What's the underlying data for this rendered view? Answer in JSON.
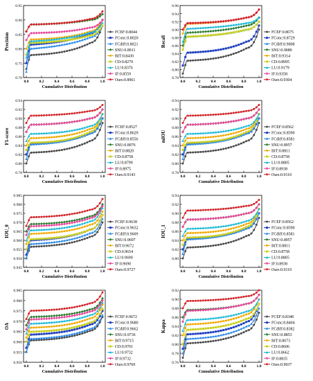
{
  "chart_data": [
    {
      "type": "line",
      "xlabel": "Cumulative Distribution",
      "ylabel": "Precision",
      "xlim": [
        0,
        1
      ],
      "ylim": [
        0.7,
        0.95
      ],
      "yticks": [
        "0.70",
        "0.75",
        "0.80",
        "0.85",
        "0.90",
        "0.95"
      ],
      "xticks": [
        "0.0",
        "0.2",
        "0.4",
        "0.6",
        "0.8",
        "1.0"
      ],
      "legend": [
        "FCEF:0.8044",
        "FConc:0.8020",
        "FCdiff:0.8021",
        "SNU:0.8911",
        "BIT:0.8430",
        "CD:0.8279",
        "LU:0.8376",
        "IF:0.8559",
        "Ours:0.8961"
      ],
      "series": [
        {
          "start": 0.73,
          "mid": 0.79,
          "end": 0.88
        },
        {
          "start": 0.75,
          "mid": 0.83,
          "end": 0.9
        },
        {
          "start": 0.72,
          "mid": 0.82,
          "end": 0.88
        },
        {
          "start": 0.86,
          "mid": 0.89,
          "end": 0.92
        },
        {
          "start": 0.8,
          "mid": 0.84,
          "end": 0.9
        },
        {
          "start": 0.78,
          "mid": 0.83,
          "end": 0.88
        },
        {
          "start": 0.77,
          "mid": 0.84,
          "end": 0.89
        },
        {
          "start": 0.83,
          "mid": 0.86,
          "end": 0.9
        },
        {
          "start": 0.86,
          "mid": 0.89,
          "end": 0.93
        }
      ]
    },
    {
      "type": "line",
      "xlabel": "Cumulative Distribution",
      "ylabel": "Recall",
      "xlim": [
        0,
        1
      ],
      "ylim": [
        0.78,
        0.96
      ],
      "yticks": [
        "0.78",
        "0.80",
        "0.82",
        "0.84",
        "0.86",
        "0.88",
        "0.90",
        "0.92",
        "0.94",
        "0.96"
      ],
      "xticks": [
        "0.0",
        "0.2",
        "0.4",
        "0.6",
        "0.8",
        "1.0"
      ],
      "legend": [
        "FCEF:0.8675",
        "FConc:0.8729",
        "FCdiff:0.9008",
        "SNU:0.9089",
        "BIT:0.9314",
        "CD:0.8995",
        "LU:0.9179",
        "IF:0.9358",
        "Ours:0.9304"
      ],
      "series": [
        {
          "start": 0.79,
          "mid": 0.83,
          "end": 0.9
        },
        {
          "start": 0.81,
          "mid": 0.85,
          "end": 0.91
        },
        {
          "start": 0.85,
          "mid": 0.89,
          "end": 0.92
        },
        {
          "start": 0.86,
          "mid": 0.9,
          "end": 0.93
        },
        {
          "start": 0.89,
          "mid": 0.92,
          "end": 0.95
        },
        {
          "start": 0.85,
          "mid": 0.89,
          "end": 0.92
        },
        {
          "start": 0.87,
          "mid": 0.91,
          "end": 0.93
        },
        {
          "start": 0.9,
          "mid": 0.92,
          "end": 0.95
        },
        {
          "start": 0.9,
          "mid": 0.92,
          "end": 0.95
        }
      ]
    },
    {
      "type": "line",
      "xlabel": "Cumulative Distribution",
      "ylabel": "F1-score",
      "xlim": [
        0,
        1
      ],
      "ylim": [
        0.78,
        0.94
      ],
      "yticks": [
        "0.78",
        "0.80",
        "0.82",
        "0.84",
        "0.86",
        "0.88",
        "0.90",
        "0.92",
        "0.94"
      ],
      "xticks": [
        "0.0",
        "0.2",
        "0.4",
        "0.6",
        "0.8",
        "1.0"
      ],
      "legend": [
        "FCEF:0.8527",
        "FConc:0.8629",
        "FCdiff:0.8556",
        "SNU:0.8976",
        "BIT:0.8820",
        "CD:0.8758",
        "LU:0.8799",
        "IF:0.8975",
        "Ours:0.9143"
      ],
      "series": [
        {
          "start": 0.8,
          "mid": 0.83,
          "end": 0.89
        },
        {
          "start": 0.82,
          "mid": 0.85,
          "end": 0.9
        },
        {
          "start": 0.81,
          "mid": 0.85,
          "end": 0.9
        },
        {
          "start": 0.87,
          "mid": 0.89,
          "end": 0.92
        },
        {
          "start": 0.84,
          "mid": 0.86,
          "end": 0.91
        },
        {
          "start": 0.83,
          "mid": 0.85,
          "end": 0.91
        },
        {
          "start": 0.85,
          "mid": 0.87,
          "end": 0.91
        },
        {
          "start": 0.87,
          "mid": 0.89,
          "end": 0.92
        },
        {
          "start": 0.89,
          "mid": 0.91,
          "end": 0.93
        }
      ]
    },
    {
      "type": "line",
      "xlabel": "Cumulative Distribution",
      "ylabel": "mIOU",
      "xlim": [
        0,
        1
      ],
      "ylim": [
        0.78,
        0.94
      ],
      "yticks": [
        "0.78",
        "0.80",
        "0.82",
        "0.84",
        "0.86",
        "0.88",
        "0.90",
        "0.92",
        "0.94"
      ],
      "xticks": [
        "0.0",
        "0.2",
        "0.4",
        "0.6",
        "0.8",
        "1.0"
      ],
      "legend": [
        "FCEF:0.8562",
        "FConc:0.8590",
        "FCdiff:0.8581",
        "SNU:0.8957",
        "BIT:0.8811",
        "CD:0.8758",
        "LU:0.8805",
        "IF:0.8938",
        "Ours:0.9110"
      ],
      "series": [
        {
          "start": 0.8,
          "mid": 0.83,
          "end": 0.89
        },
        {
          "start": 0.82,
          "mid": 0.85,
          "end": 0.9
        },
        {
          "start": 0.81,
          "mid": 0.85,
          "end": 0.9
        },
        {
          "start": 0.87,
          "mid": 0.89,
          "end": 0.92
        },
        {
          "start": 0.84,
          "mid": 0.86,
          "end": 0.91
        },
        {
          "start": 0.83,
          "mid": 0.85,
          "end": 0.91
        },
        {
          "start": 0.85,
          "mid": 0.87,
          "end": 0.91
        },
        {
          "start": 0.87,
          "mid": 0.89,
          "end": 0.92
        },
        {
          "start": 0.89,
          "mid": 0.91,
          "end": 0.93
        }
      ]
    },
    {
      "type": "line",
      "xlabel": "Cumulative Distribution",
      "ylabel": "IOU_0",
      "xlim": [
        0,
        1
      ],
      "ylim": [
        0.945,
        0.985
      ],
      "yticks": [
        "0.945",
        "0.950",
        "0.955",
        "0.960",
        "0.965",
        "0.970",
        "0.975",
        "0.980",
        "0.985"
      ],
      "xticks": [
        "0.0",
        "0.2",
        "0.4",
        "0.6",
        "0.8",
        "1.0"
      ],
      "legend": [
        "FCEF:0.9638",
        "FConc:0.9632",
        "FCdiff:0.9609",
        "SNU:0.9697",
        "BIT:0.9672",
        "CD:0.9654",
        "LU:0.9690",
        "IF:0.9690",
        "Ours:0.9727"
      ],
      "series": [
        {
          "start": 0.95,
          "mid": 0.958,
          "end": 0.97
        },
        {
          "start": 0.952,
          "mid": 0.962,
          "end": 0.974
        },
        {
          "start": 0.95,
          "mid": 0.96,
          "end": 0.972
        },
        {
          "start": 0.965,
          "mid": 0.97,
          "end": 0.98
        },
        {
          "start": 0.958,
          "mid": 0.965,
          "end": 0.976
        },
        {
          "start": 0.955,
          "mid": 0.962,
          "end": 0.974
        },
        {
          "start": 0.96,
          "mid": 0.967,
          "end": 0.978
        },
        {
          "start": 0.963,
          "mid": 0.969,
          "end": 0.979
        },
        {
          "start": 0.968,
          "mid": 0.974,
          "end": 0.983
        }
      ]
    },
    {
      "type": "line",
      "xlabel": "Cumulative Distribution",
      "ylabel": "IOU_1",
      "xlim": [
        0,
        1
      ],
      "ylim": [
        0.78,
        0.94
      ],
      "yticks": [
        "0.80",
        "0.82",
        "0.84",
        "0.86",
        "0.88",
        "0.90",
        "0.92",
        "0.94"
      ],
      "xticks": [
        "0.0",
        "0.2",
        "0.4",
        "0.6",
        "0.8",
        "1.0"
      ],
      "legend": [
        "FCEF:0.8562",
        "FConc:0.8590",
        "FCdiff:0.8581",
        "SNU:0.8957",
        "BIT:0.8811",
        "CD:0.8758",
        "LU:0.8805",
        "IF:0.8938",
        "Ours:0.9110"
      ],
      "series": [
        {
          "start": 0.8,
          "mid": 0.83,
          "end": 0.89
        },
        {
          "start": 0.82,
          "mid": 0.85,
          "end": 0.9
        },
        {
          "start": 0.81,
          "mid": 0.85,
          "end": 0.9
        },
        {
          "start": 0.87,
          "mid": 0.89,
          "end": 0.92
        },
        {
          "start": 0.84,
          "mid": 0.86,
          "end": 0.91
        },
        {
          "start": 0.83,
          "mid": 0.85,
          "end": 0.91
        },
        {
          "start": 0.85,
          "mid": 0.87,
          "end": 0.91
        },
        {
          "start": 0.87,
          "mid": 0.89,
          "end": 0.92
        },
        {
          "start": 0.89,
          "mid": 0.91,
          "end": 0.93
        }
      ]
    },
    {
      "type": "line",
      "xlabel": "Cumulative Distribution",
      "ylabel": "OA",
      "xlim": [
        0,
        1
      ],
      "ylim": [
        0.95,
        0.985
      ],
      "yticks": [
        "0.950",
        "0.955",
        "0.960",
        "0.965",
        "0.970",
        "0.975",
        "0.980",
        "0.985"
      ],
      "xticks": [
        "0.0",
        "0.2",
        "0.4",
        "0.6",
        "0.8",
        "1.0"
      ],
      "legend": [
        "FCEF:0.9672",
        "FConc:0.9680",
        "FCdiff:0.9662",
        "SNU:0.9736",
        "BIT:0.9715",
        "CD:0.9701",
        "LU:0.9732",
        "IF:0.9732",
        "Ours:0.9769"
      ],
      "series": [
        {
          "start": 0.955,
          "mid": 0.962,
          "end": 0.972
        },
        {
          "start": 0.957,
          "mid": 0.965,
          "end": 0.975
        },
        {
          "start": 0.955,
          "mid": 0.963,
          "end": 0.973
        },
        {
          "start": 0.968,
          "mid": 0.973,
          "end": 0.981
        },
        {
          "start": 0.962,
          "mid": 0.968,
          "end": 0.978
        },
        {
          "start": 0.96,
          "mid": 0.966,
          "end": 0.976
        },
        {
          "start": 0.964,
          "mid": 0.97,
          "end": 0.979
        },
        {
          "start": 0.966,
          "mid": 0.972,
          "end": 0.98
        },
        {
          "start": 0.971,
          "mid": 0.976,
          "end": 0.984
        }
      ]
    },
    {
      "type": "line",
      "xlabel": "Cumulative Distribution",
      "ylabel": "Kappa",
      "xlim": [
        0,
        1
      ],
      "ylim": [
        0.76,
        0.92
      ],
      "yticks": [
        "0.76",
        "0.78",
        "0.80",
        "0.82",
        "0.84",
        "0.86",
        "0.88",
        "0.90",
        "0.92"
      ],
      "xticks": [
        "0.0",
        "0.2",
        "0.4",
        "0.6",
        "0.8",
        "1.0"
      ],
      "legend": [
        "FCEF:0.8348",
        "FConc:0.8404",
        "FCdiff:0.8382",
        "SNU:0.8853",
        "BIT:0.8673",
        "CD:0.8606",
        "LU:0.8662",
        "IF:0.8835",
        "Ours:0.9037"
      ],
      "series": [
        {
          "start": 0.77,
          "mid": 0.81,
          "end": 0.87
        },
        {
          "start": 0.79,
          "mid": 0.83,
          "end": 0.89
        },
        {
          "start": 0.78,
          "mid": 0.82,
          "end": 0.88
        },
        {
          "start": 0.86,
          "mid": 0.88,
          "end": 0.91
        },
        {
          "start": 0.82,
          "mid": 0.85,
          "end": 0.9
        },
        {
          "start": 0.8,
          "mid": 0.84,
          "end": 0.89
        },
        {
          "start": 0.83,
          "mid": 0.86,
          "end": 0.9
        },
        {
          "start": 0.85,
          "mid": 0.88,
          "end": 0.91
        },
        {
          "start": 0.88,
          "mid": 0.9,
          "end": 0.92
        }
      ]
    }
  ],
  "colors": [
    "#4a4a4a",
    "#1f3fbf",
    "#2c8ae8",
    "#2e7d32",
    "#f2a900",
    "#c9d020",
    "#19b8d6",
    "#e64a9b",
    "#d2262b"
  ],
  "markers": [
    "circle",
    "square",
    "triangle",
    "diamond",
    "circle",
    "square",
    "triangle",
    "diamond",
    "circle"
  ]
}
